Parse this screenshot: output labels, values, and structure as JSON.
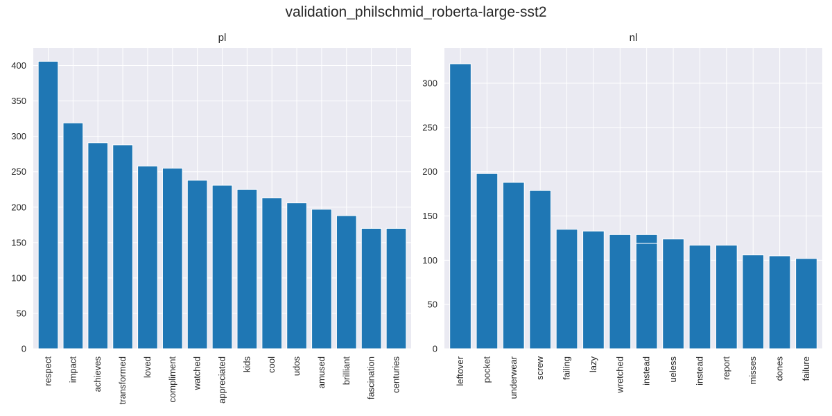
{
  "figure": {
    "suptitle": "validation_philschmid_roberta-large-sst2"
  },
  "colors": {
    "background": "#eaeaf2",
    "grid": "#ffffff",
    "bar": "#1f77b4",
    "text": "#262626"
  },
  "chart_data": [
    {
      "type": "bar",
      "title": "pl",
      "xlabel": "",
      "ylabel": "",
      "ylim": [
        0,
        425
      ],
      "yticks": [
        0,
        50,
        100,
        150,
        200,
        250,
        300,
        350,
        400
      ],
      "grid": true,
      "categories": [
        "respect",
        "impact",
        "achieves",
        "transformed",
        "loved",
        "compliment",
        "watched",
        "appreciated",
        "kids",
        "cool",
        "udos",
        "amused",
        "brilliant",
        "fascination",
        "centuries"
      ],
      "values": [
        406,
        319,
        291,
        288,
        258,
        255,
        238,
        231,
        225,
        213,
        206,
        197,
        188,
        170,
        170
      ]
    },
    {
      "type": "bar",
      "title": "nl",
      "xlabel": "",
      "ylabel": "",
      "ylim": [
        0,
        340
      ],
      "yticks": [
        0,
        50,
        100,
        150,
        200,
        250,
        300
      ],
      "grid": true,
      "categories": [
        "leftover",
        "pocket",
        "underwear",
        "screw",
        "failing",
        "lazy",
        "wretched",
        "instead",
        "ueless",
        "instead",
        "report",
        "misses",
        "dones",
        "failure"
      ],
      "values": [
        322,
        198,
        188,
        179,
        135,
        133,
        129,
        129,
        124,
        117,
        117,
        106,
        105,
        102
      ],
      "overlay": [
        null,
        null,
        null,
        null,
        null,
        null,
        null,
        119,
        null,
        null,
        null,
        null,
        null,
        null
      ]
    }
  ]
}
